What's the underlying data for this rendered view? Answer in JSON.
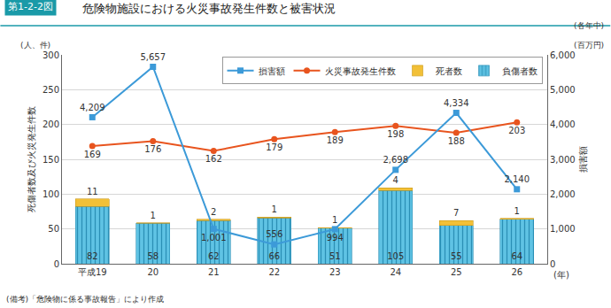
{
  "chart_data": {
    "type": "bar",
    "title": "危険物施設における火災事故発生件数と被害状況",
    "annotations": [
      "第1-2-2図",
      "(人、件)",
      "(各年中)",
      "(百万円)",
      "(備考)「危険物に係る事故報告」により作成"
    ],
    "x_label": "(年)",
    "y_label": "死傷者数及び火災発生件数",
    "y2_label": "損害額",
    "categories": [
      "平成19",
      "20",
      "21",
      "22",
      "23",
      "24",
      "25",
      "26"
    ],
    "stacked": true,
    "data_labels": true,
    "grid": true,
    "legend": "top right",
    "ylim": [
      0,
      300
    ],
    "yticks": [
      0,
      50,
      100,
      150,
      200,
      250,
      300
    ],
    "y2lim": [
      0,
      6000
    ],
    "y2ticks": [
      0,
      {
        "value": 1000,
        "label": "1,000"
      },
      {
        "value": 2000,
        "label": "2,000"
      },
      {
        "value": 3000,
        "label": "3,000"
      },
      {
        "value": 4000,
        "label": "4,000"
      },
      {
        "value": 5000,
        "label": "5,000"
      },
      {
        "value": 6000,
        "label": "6,000"
      }
    ],
    "series": [
      {
        "name": "負傷者数",
        "type": "bar",
        "color": "#5fc3e4",
        "values": [
          82,
          58,
          62,
          66,
          51,
          105,
          55,
          64
        ]
      },
      {
        "name": "死者数",
        "type": "bar",
        "color": "#f2c037",
        "values": [
          11,
          1,
          2,
          1,
          1,
          4,
          7,
          1
        ]
      },
      {
        "name": "火災事故発生件数",
        "type": "line",
        "marker": "circle",
        "color": "#e8541e",
        "values": [
          169,
          176,
          162,
          179,
          189,
          198,
          188,
          203
        ]
      },
      {
        "name": "損害額",
        "type": "line",
        "marker": "square",
        "color": "#3c9ad8",
        "axis": "y2",
        "values": [
          4209,
          5657,
          1001,
          556,
          994,
          2698,
          4334,
          2140
        ],
        "value_labels": [
          "4,209",
          "5,657",
          "1,001",
          "556",
          "994",
          "2,698",
          "4,334",
          "2,140"
        ]
      }
    ]
  }
}
